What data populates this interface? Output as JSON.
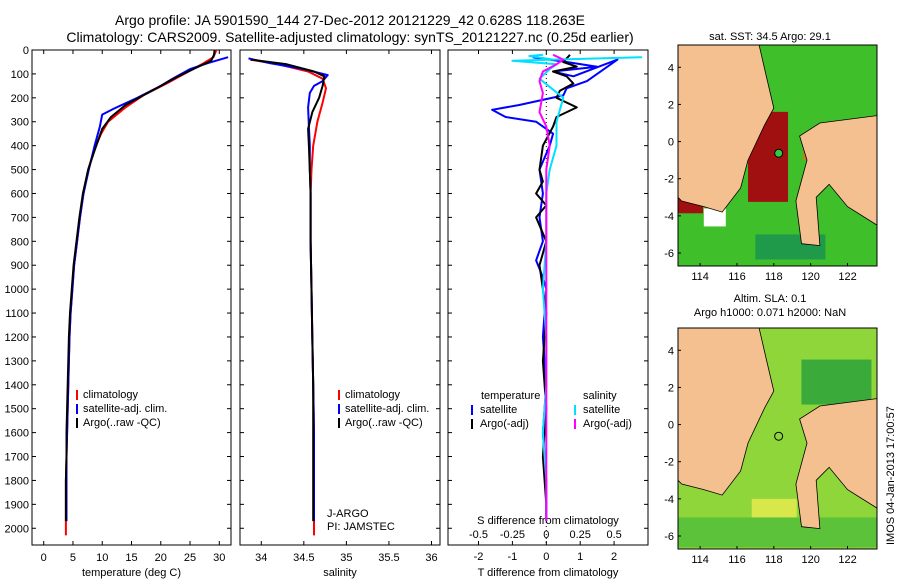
{
  "header": {
    "line1": "Argo profile: JA 5901590_144 27-Dec-2012 20121229_42 0.628S 118.263E",
    "line2": "Climatology: CARS2009. Satellite-adjusted climatology: synTS_20121227.nc (0.25d earlier)"
  },
  "credit": "IMOS 04-Jan-2013 17:00:57",
  "colors": {
    "climatology": "#ff0000",
    "satellite": "#0000ff",
    "argo": "#000000",
    "satellite_s": "#00e0ff",
    "argo_adj_s": "#ff00ff",
    "land": "#f5c08f",
    "sst_warm": "#3fbf2a",
    "sst_hot": "#a01010",
    "sla": "#8fd63a"
  },
  "legend": {
    "climatology": "climatology",
    "satellite_adj": "satellite-adj. clim.",
    "argo_raw": "Argo(..raw -QC)",
    "temperature": "temperature",
    "salinity": "salinity",
    "satellite": "satellite",
    "argo_adj": "Argo(-adj)"
  },
  "annotation": {
    "jargo": "J-ARGO",
    "pi": "PI: JAMSTEC"
  },
  "map1_title": "sat. SST: 34.5  Argo: 29.1",
  "map2_title_1": "Altim. SLA: 0.1",
  "map2_title_2": "Argo h1000: 0.071  h2000: NaN",
  "chart_data": [
    {
      "type": "line",
      "xlabel": "temperature (deg C)",
      "ylabel": "",
      "xlim": [
        -2,
        32
      ],
      "ylim": [
        2070,
        0
      ],
      "xticks": [
        0,
        5,
        10,
        15,
        20,
        25,
        30
      ],
      "yticks": [
        0,
        100,
        200,
        300,
        400,
        500,
        600,
        700,
        800,
        900,
        1000,
        1100,
        1200,
        1300,
        1400,
        1500,
        1600,
        1700,
        1800,
        1900,
        2000
      ],
      "series": [
        {
          "name": "climatology",
          "points": [
            [
              29.5,
              0
            ],
            [
              29,
              30
            ],
            [
              27,
              60
            ],
            [
              24,
              100
            ],
            [
              21,
              140
            ],
            [
              17,
              190
            ],
            [
              14,
              240
            ],
            [
              11,
              300
            ],
            [
              9.8,
              350
            ],
            [
              8.6,
              420
            ],
            [
              7.6,
              500
            ],
            [
              6.8,
              600
            ],
            [
              6.2,
              700
            ],
            [
              5.7,
              800
            ],
            [
              5.2,
              900
            ],
            [
              4.9,
              1000
            ],
            [
              4.6,
              1100
            ],
            [
              4.4,
              1200
            ],
            [
              4.3,
              1300
            ],
            [
              4.2,
              1400
            ],
            [
              4.1,
              1500
            ],
            [
              4.0,
              1600
            ],
            [
              3.9,
              1700
            ],
            [
              3.8,
              1800
            ],
            [
              3.8,
              1900
            ],
            [
              3.8,
              2030
            ]
          ]
        },
        {
          "name": "satellite-adj. clim.",
          "points": [
            [
              31.5,
              30
            ],
            [
              28,
              55
            ],
            [
              25,
              80
            ],
            [
              22,
              120
            ],
            [
              20,
              150
            ],
            [
              16,
              200
            ],
            [
              12,
              245
            ],
            [
              10,
              270
            ],
            [
              9.6,
              320
            ],
            [
              8.7,
              400
            ],
            [
              7.7,
              500
            ],
            [
              6.8,
              600
            ],
            [
              6.2,
              700
            ],
            [
              5.7,
              800
            ],
            [
              5.2,
              900
            ],
            [
              4.9,
              1000
            ],
            [
              4.6,
              1100
            ],
            [
              4.4,
              1200
            ],
            [
              4.3,
              1300
            ],
            [
              4.2,
              1400
            ],
            [
              4.1,
              1500
            ],
            [
              4.0,
              1600
            ],
            [
              3.9,
              1700
            ],
            [
              3.9,
              1800
            ],
            [
              3.9,
              1900
            ],
            [
              3.9,
              1970
            ]
          ]
        },
        {
          "name": "Argo(..raw -QC)",
          "points": [
            [
              29.2,
              0
            ],
            [
              29.1,
              20
            ],
            [
              28.6,
              45
            ],
            [
              26,
              75
            ],
            [
              23,
              110
            ],
            [
              20,
              150
            ],
            [
              17,
              190
            ],
            [
              14,
              230
            ],
            [
              11.5,
              280
            ],
            [
              10,
              330
            ],
            [
              8.7,
              420
            ],
            [
              7.6,
              500
            ],
            [
              6.7,
              600
            ],
            [
              6.1,
              700
            ],
            [
              5.6,
              800
            ],
            [
              5.1,
              900
            ],
            [
              4.8,
              1000
            ],
            [
              4.5,
              1100
            ],
            [
              4.3,
              1200
            ],
            [
              4.2,
              1300
            ],
            [
              4.1,
              1400
            ],
            [
              4.0,
              1500
            ],
            [
              3.9,
              1600
            ],
            [
              3.9,
              1700
            ],
            [
              3.8,
              1800
            ],
            [
              3.8,
              1900
            ],
            [
              3.8,
              1970
            ]
          ]
        }
      ]
    },
    {
      "type": "line",
      "xlabel": "salinity",
      "ylabel": "",
      "xlim": [
        33.75,
        36.1
      ],
      "ylim": [
        2070,
        0
      ],
      "xticks": [
        34,
        34.5,
        35,
        35.5,
        36
      ],
      "series": [
        {
          "name": "climatology",
          "points": [
            [
              33.87,
              40
            ],
            [
              34.2,
              60
            ],
            [
              34.55,
              90
            ],
            [
              34.72,
              120
            ],
            [
              34.76,
              160
            ],
            [
              34.72,
              220
            ],
            [
              34.66,
              300
            ],
            [
              34.61,
              400
            ],
            [
              34.59,
              500
            ],
            [
              34.58,
              600
            ],
            [
              34.58,
              800
            ],
            [
              34.59,
              1000
            ],
            [
              34.6,
              1200
            ],
            [
              34.61,
              1400
            ],
            [
              34.62,
              1600
            ],
            [
              34.62,
              1800
            ],
            [
              34.62,
              2030
            ]
          ]
        },
        {
          "name": "satellite-adj. clim.",
          "points": [
            [
              33.85,
              35
            ],
            [
              34.1,
              55
            ],
            [
              34.5,
              80
            ],
            [
              34.78,
              105
            ],
            [
              34.72,
              130
            ],
            [
              34.62,
              150
            ],
            [
              34.57,
              180
            ],
            [
              34.55,
              240
            ],
            [
              34.56,
              320
            ],
            [
              34.57,
              400
            ],
            [
              34.57,
              500
            ],
            [
              34.58,
              600
            ],
            [
              34.58,
              800
            ],
            [
              34.59,
              1000
            ],
            [
              34.6,
              1200
            ],
            [
              34.61,
              1400
            ],
            [
              34.62,
              1600
            ],
            [
              34.62,
              1800
            ],
            [
              34.62,
              1970
            ]
          ]
        },
        {
          "name": "Argo(..raw -QC)",
          "points": [
            [
              33.88,
              40
            ],
            [
              34.3,
              60
            ],
            [
              34.62,
              90
            ],
            [
              34.74,
              110
            ],
            [
              34.72,
              150
            ],
            [
              34.68,
              200
            ],
            [
              34.6,
              260
            ],
            [
              34.55,
              330
            ],
            [
              34.56,
              400
            ],
            [
              34.57,
              500
            ],
            [
              34.58,
              600
            ],
            [
              34.58,
              800
            ],
            [
              34.59,
              1000
            ],
            [
              34.6,
              1200
            ],
            [
              34.61,
              1400
            ],
            [
              34.61,
              1600
            ],
            [
              34.61,
              1800
            ],
            [
              34.61,
              1970
            ]
          ]
        }
      ]
    },
    {
      "type": "line",
      "xlabel": "T difference from climatology",
      "xlabel2": "S difference from climatology",
      "ylabel": "",
      "xlim": [
        -2.9,
        3.0
      ],
      "ylim": [
        2070,
        0
      ],
      "xticks": [
        -2,
        -1,
        0,
        1,
        2
      ],
      "s_ticks": [
        "-0.5",
        "-0.25",
        "0",
        "0.25",
        "0.5"
      ],
      "s_scale": 4,
      "series": [
        {
          "name": "temperature satellite",
          "points": [
            [
              -0.4,
              30
            ],
            [
              0.6,
              50
            ],
            [
              1.5,
              70
            ],
            [
              0.2,
              90
            ],
            [
              0.8,
              110
            ],
            [
              2.1,
              40
            ],
            [
              1.2,
              130
            ],
            [
              0.6,
              160
            ],
            [
              0.5,
              190
            ],
            [
              -0.8,
              230
            ],
            [
              -1.6,
              250
            ],
            [
              -1.2,
              280
            ],
            [
              -0.3,
              300
            ],
            [
              0.2,
              350
            ],
            [
              0.1,
              400
            ],
            [
              -0.2,
              500
            ],
            [
              -0.1,
              600
            ],
            [
              -0.2,
              700
            ],
            [
              -0.1,
              800
            ],
            [
              -0.3,
              880
            ],
            [
              -0.1,
              950
            ],
            [
              0,
              1000
            ],
            [
              -0.1,
              1200
            ],
            [
              0,
              1400
            ],
            [
              -0.1,
              1600
            ],
            [
              0,
              1800
            ],
            [
              0,
              1970
            ]
          ]
        },
        {
          "name": "temperature Argo(-adj)",
          "points": [
            [
              0.7,
              20
            ],
            [
              0.5,
              50
            ],
            [
              0.9,
              70
            ],
            [
              0.2,
              90
            ],
            [
              0.6,
              110
            ],
            [
              0.8,
              140
            ],
            [
              0.4,
              170
            ],
            [
              0.3,
              200
            ],
            [
              0.9,
              240
            ],
            [
              0.3,
              280
            ],
            [
              0.2,
              320
            ],
            [
              -0.1,
              400
            ],
            [
              -0.2,
              500
            ],
            [
              -0.1,
              550
            ],
            [
              -0.3,
              600
            ],
            [
              0,
              650
            ],
            [
              -0.3,
              700
            ],
            [
              0,
              800
            ],
            [
              -0.2,
              900
            ],
            [
              -0.1,
              1000
            ],
            [
              0,
              1100
            ],
            [
              -0.1,
              1300
            ],
            [
              0,
              1500
            ],
            [
              -0.1,
              1700
            ],
            [
              0,
              1900
            ],
            [
              0,
              1970
            ]
          ]
        },
        {
          "name": "salinity satellite",
          "points": [
            [
              -0.1,
              20
            ],
            [
              -0.5,
              25
            ],
            [
              0.2,
              40
            ],
            [
              2.8,
              30
            ],
            [
              -1.0,
              45
            ],
            [
              0.3,
              60
            ],
            [
              0.1,
              80
            ],
            [
              -0.2,
              120
            ],
            [
              0.5,
              200
            ],
            [
              0.3,
              300
            ],
            [
              0.3,
              400
            ],
            [
              0.1,
              500
            ],
            [
              0,
              600
            ],
            [
              0,
              800
            ],
            [
              -0.1,
              1000
            ],
            [
              0,
              1200
            ],
            [
              0,
              1400
            ],
            [
              -0.1,
              1600
            ],
            [
              0,
              1800
            ],
            [
              0,
              1970
            ]
          ]
        },
        {
          "name": "salinity Argo(-adj)",
          "points": [
            [
              0.2,
              20
            ],
            [
              0.5,
              40
            ],
            [
              0.3,
              60
            ],
            [
              -0.1,
              90
            ],
            [
              -0.2,
              130
            ],
            [
              -0.1,
              180
            ],
            [
              -0.2,
              260
            ],
            [
              0,
              320
            ],
            [
              0.1,
              400
            ],
            [
              0,
              500
            ],
            [
              0,
              600
            ],
            [
              0,
              800
            ],
            [
              0,
              1000
            ],
            [
              0,
              1200
            ],
            [
              0,
              1400
            ],
            [
              0,
              1600
            ],
            [
              0,
              1800
            ],
            [
              0,
              1970
            ]
          ]
        }
      ]
    }
  ],
  "maps": {
    "lon_ticks": [
      "114",
      "116",
      "118",
      "120",
      "122"
    ],
    "lat_ticks": [
      "4",
      "2",
      "0",
      "-2",
      "-4",
      "-6"
    ]
  }
}
